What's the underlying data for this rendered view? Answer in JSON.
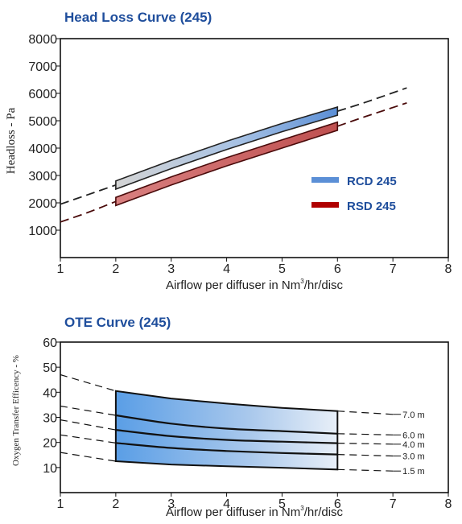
{
  "chart_data": [
    {
      "type": "line",
      "title": "Head Loss Curve (245)",
      "xlabel": "Airflow per diffuser in Nm³/hr/disc",
      "xlabel_main": "Airflow per diffuser in Nm",
      "xlabel_sup": "3",
      "xlabel_tail": "/hr/disc",
      "ylabel": "Headloss - Pa",
      "xlim": [
        1,
        8
      ],
      "ylim": [
        0,
        8000
      ],
      "xticks": [
        "1",
        "2",
        "3",
        "4",
        "5",
        "6",
        "7",
        "8"
      ],
      "yticks": [
        "1000",
        "2000",
        "3000",
        "4000",
        "5000",
        "6000",
        "7000",
        "8000"
      ],
      "grid": false,
      "legend_position": "right",
      "series": [
        {
          "name": "RCD 245",
          "color": "#5b8fd6",
          "band_lower": [
            [
              2,
              2500
            ],
            [
              3,
              3250
            ],
            [
              4,
              3950
            ],
            [
              5,
              4600
            ],
            [
              6,
              5200
            ]
          ],
          "band_upper": [
            [
              2,
              2800
            ],
            [
              3,
              3550
            ],
            [
              4,
              4250
            ],
            [
              5,
              4900
            ],
            [
              6,
              5500
            ]
          ],
          "extrapolated_low": [
            [
              1,
              1950
            ],
            [
              1.5,
              2300
            ],
            [
              2,
              2650
            ]
          ],
          "extrapolated_high": [
            [
              6,
              5350
            ],
            [
              6.5,
              5670
            ],
            [
              7.25,
              6200
            ]
          ]
        },
        {
          "name": "RSD 245",
          "color": "#b00000",
          "band_lower": [
            [
              2,
              1900
            ],
            [
              3,
              2650
            ],
            [
              4,
              3350
            ],
            [
              5,
              4000
            ],
            [
              6,
              4650
            ]
          ],
          "band_upper": [
            [
              2,
              2200
            ],
            [
              3,
              2950
            ],
            [
              4,
              3650
            ],
            [
              5,
              4300
            ],
            [
              6,
              4950
            ]
          ],
          "extrapolated_low": [
            [
              1,
              1300
            ],
            [
              1.5,
              1650
            ],
            [
              2,
              2050
            ]
          ],
          "extrapolated_high": [
            [
              6,
              4800
            ],
            [
              6.5,
              5150
            ],
            [
              7.25,
              5650
            ]
          ]
        }
      ]
    },
    {
      "type": "line",
      "title": "OTE Curve (245)",
      "xlabel": "Airflow per diffuser in Nm³/hr/disc",
      "xlabel_main": "Airflow per diffuser in Nm",
      "xlabel_sup": "3",
      "xlabel_tail": "/hr/disc",
      "ylabel": "Oxygen Transfer Efficency - %",
      "xlim": [
        1,
        8
      ],
      "ylim": [
        0,
        60
      ],
      "xticks": [
        "1",
        "2",
        "3",
        "4",
        "5",
        "6",
        "7",
        "8"
      ],
      "yticks": [
        "10",
        "20",
        "30",
        "40",
        "50",
        "60"
      ],
      "grid": false,
      "series": [
        {
          "name": "7.0 m",
          "values": [
            [
              1,
              47
            ],
            [
              2,
              40.5
            ],
            [
              3,
              37.5
            ],
            [
              4,
              35.5
            ],
            [
              5,
              33.8
            ],
            [
              6,
              32.5
            ],
            [
              7,
              31.2
            ]
          ]
        },
        {
          "name": "6.0 m",
          "values": [
            [
              1,
              34.5
            ],
            [
              2,
              30.8
            ],
            [
              3,
              27.5
            ],
            [
              4,
              25.5
            ],
            [
              5,
              24.5
            ],
            [
              6,
              23.5
            ],
            [
              7,
              23
            ]
          ]
        },
        {
          "name": "4.0 m",
          "values": [
            [
              1,
              29
            ],
            [
              2,
              25
            ],
            [
              3,
              22.5
            ],
            [
              4,
              21
            ],
            [
              5,
              20.3
            ],
            [
              6,
              19.7
            ],
            [
              7,
              19.3
            ]
          ]
        },
        {
          "name": "3.0 m",
          "values": [
            [
              1,
              23
            ],
            [
              2,
              19.8
            ],
            [
              3,
              17.8
            ],
            [
              4,
              16.6
            ],
            [
              5,
              15.8
            ],
            [
              6,
              15.2
            ],
            [
              7,
              14.6
            ]
          ]
        },
        {
          "name": "1.5 m",
          "values": [
            [
              1,
              16
            ],
            [
              2,
              12.5
            ],
            [
              3,
              11.2
            ],
            [
              4,
              10.5
            ],
            [
              5,
              9.9
            ],
            [
              6,
              9.2
            ],
            [
              7,
              8.6
            ]
          ]
        }
      ]
    }
  ]
}
